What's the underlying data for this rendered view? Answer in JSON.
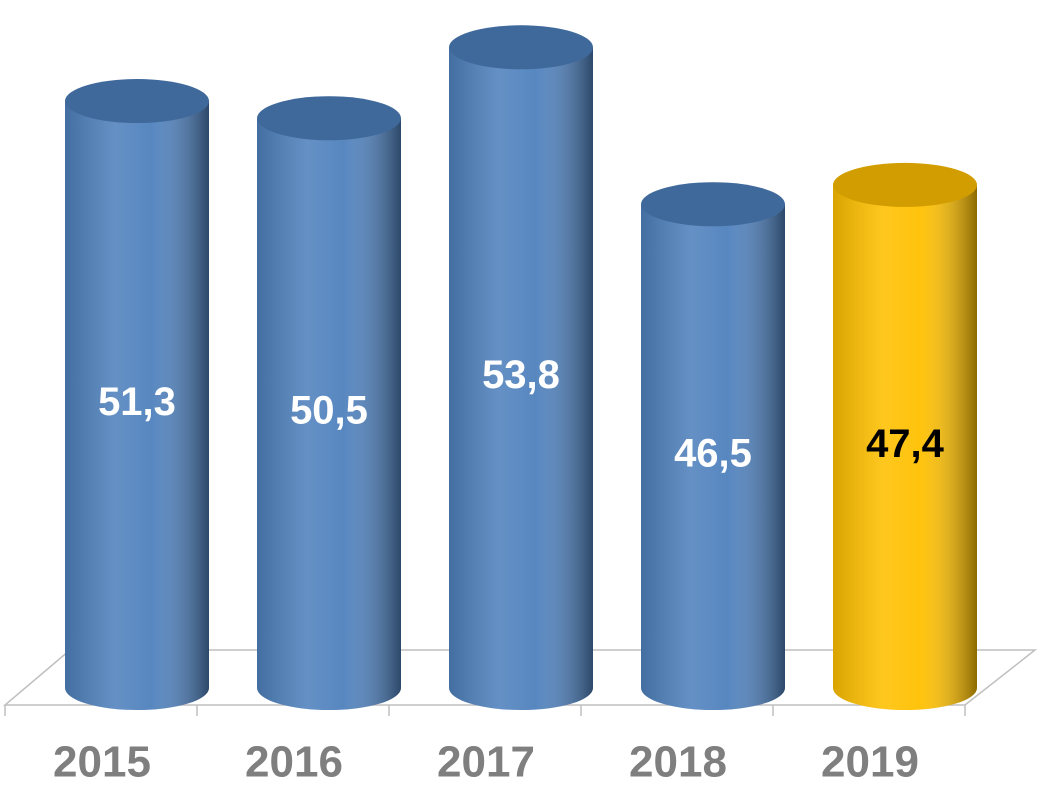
{
  "chart_data": {
    "type": "bar",
    "categories": [
      "2015",
      "2016",
      "2017",
      "2018",
      "2019"
    ],
    "values": [
      51.3,
      50.5,
      53.8,
      46.5,
      47.4
    ],
    "value_labels": [
      "51,3",
      "50,5",
      "53,8",
      "46,5",
      "47,4"
    ],
    "colors": [
      "#4f81bd",
      "#4f81bd",
      "#4f81bd",
      "#4f81bd",
      "#ffc000"
    ],
    "value_label_colors": [
      "#ffffff",
      "#ffffff",
      "#ffffff",
      "#ffffff",
      "#000000"
    ],
    "ylim": [
      24,
      55
    ]
  }
}
